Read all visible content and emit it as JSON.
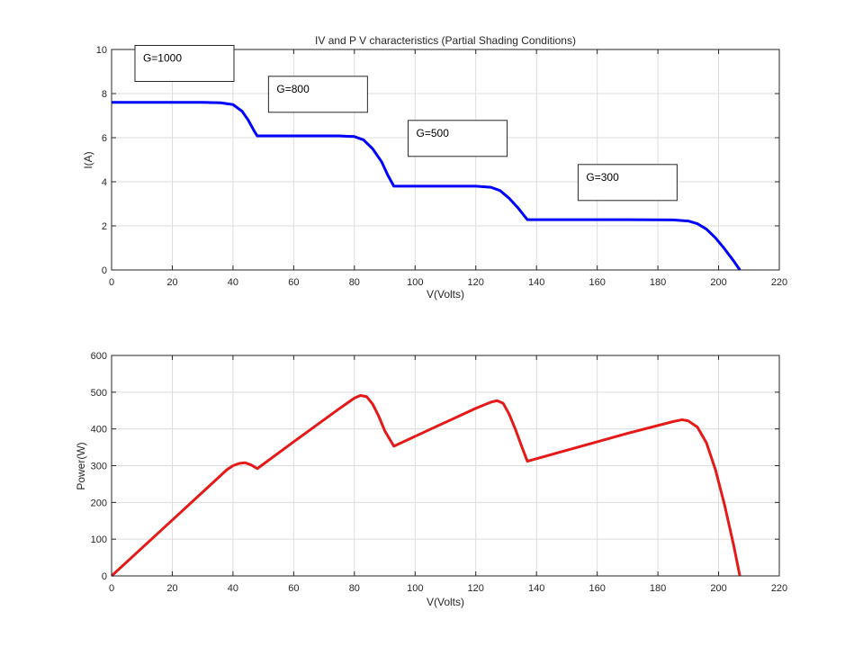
{
  "chart_data": [
    {
      "type": "line",
      "title": "IV and P V characteristics  (Partial Shading Conditions)",
      "xlabel": "V(Volts)",
      "ylabel": "I(A)",
      "xlim": [
        0,
        220
      ],
      "ylim": [
        0,
        10
      ],
      "xticks": [
        0,
        20,
        40,
        60,
        80,
        100,
        120,
        140,
        160,
        180,
        200,
        220
      ],
      "yticks": [
        0,
        2,
        4,
        6,
        8,
        10
      ],
      "grid": true,
      "color": "#0000ff",
      "x": [
        0,
        30,
        36,
        40,
        43,
        45,
        47,
        48,
        60,
        75,
        80,
        83,
        86,
        89,
        91,
        93,
        105,
        120,
        125,
        128,
        131,
        134,
        136,
        137,
        150,
        170,
        185,
        190,
        193,
        196,
        199,
        202,
        205,
        207
      ],
      "y": [
        7.6,
        7.6,
        7.58,
        7.5,
        7.2,
        6.8,
        6.3,
        6.08,
        6.08,
        6.08,
        6.05,
        5.9,
        5.5,
        4.9,
        4.3,
        3.8,
        3.8,
        3.8,
        3.75,
        3.6,
        3.25,
        2.8,
        2.45,
        2.28,
        2.28,
        2.28,
        2.27,
        2.22,
        2.1,
        1.85,
        1.45,
        0.95,
        0.4,
        0
      ],
      "annotations": [
        {
          "text": "G=1000",
          "x": 8,
          "y": 9.0
        },
        {
          "text": "G=800",
          "x": 52,
          "y": 7.6
        },
        {
          "text": "G=500",
          "x": 98,
          "y": 5.6
        },
        {
          "text": "G=300",
          "x": 154,
          "y": 3.6
        }
      ]
    },
    {
      "type": "line",
      "title": "",
      "xlabel": "V(Volts)",
      "ylabel": "Power(W)",
      "xlim": [
        0,
        220
      ],
      "ylim": [
        0,
        600
      ],
      "xticks": [
        0,
        20,
        40,
        60,
        80,
        100,
        120,
        140,
        160,
        180,
        200,
        220
      ],
      "yticks": [
        0,
        100,
        200,
        300,
        400,
        500,
        600
      ],
      "grid": true,
      "color": "#e61919",
      "x": [
        0,
        20,
        38,
        40,
        42,
        44,
        46,
        48,
        60,
        75,
        80,
        82,
        84,
        86,
        88,
        90,
        93,
        105,
        120,
        125,
        127,
        129,
        131,
        133,
        135,
        137,
        150,
        170,
        185,
        188,
        190,
        193,
        196,
        199,
        202,
        205,
        207
      ],
      "y": [
        0,
        152,
        289,
        300,
        306,
        308,
        302,
        292,
        365,
        455,
        484,
        491,
        488,
        468,
        435,
        395,
        353,
        399,
        456,
        473,
        477,
        470,
        440,
        400,
        355,
        312,
        342,
        388,
        420,
        425,
        422,
        405,
        362,
        288,
        192,
        82,
        0
      ]
    }
  ]
}
